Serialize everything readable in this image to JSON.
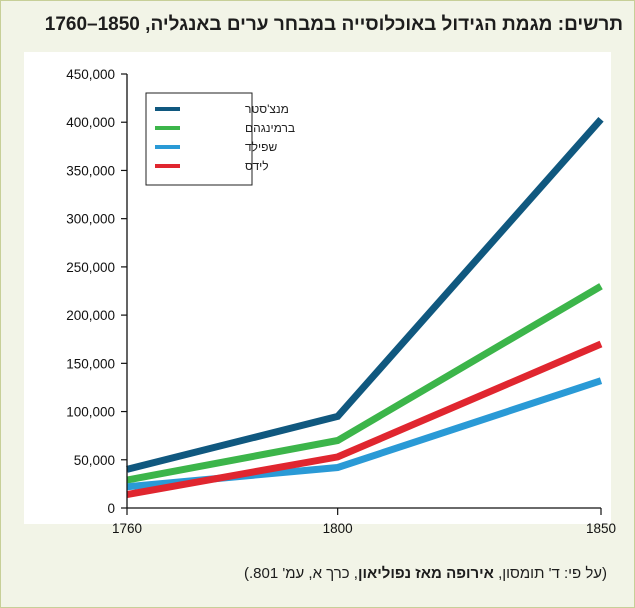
{
  "chart_data": {
    "type": "line",
    "title": "תרשים: מגמת הגידול באוכלוסייה במבחר ערים באנגליה, 1850–1760",
    "x": [
      1760,
      1800,
      1850
    ],
    "x_ticks": [
      "1760",
      "1800",
      "1850"
    ],
    "y_ticks": [
      "0",
      "50,000",
      "100,000",
      "150,000",
      "200,000",
      "250,000",
      "300,000",
      "350,000",
      "400,000",
      "450,000"
    ],
    "ylim": [
      0,
      450000
    ],
    "grid": false,
    "legend_position": "top-left",
    "series": [
      {
        "name": "מנצ'סטר",
        "color": "#10587f",
        "values": [
          40000,
          95000,
          403000
        ]
      },
      {
        "name": "ברמינגהם",
        "color": "#3cb54a",
        "values": [
          29000,
          70000,
          230000
        ]
      },
      {
        "name": "שפילד",
        "color": "#2a9ad6",
        "values": [
          22000,
          42000,
          132000
        ]
      },
      {
        "name": "לידס",
        "color": "#e0262f",
        "values": [
          14000,
          53000,
          170000
        ]
      }
    ]
  },
  "source": {
    "prefix": "(על פי: ד' תומסון, ",
    "book": "אירופה מאז נפוליאון",
    "suffix": ", כרך א, עמ' 801.)"
  }
}
